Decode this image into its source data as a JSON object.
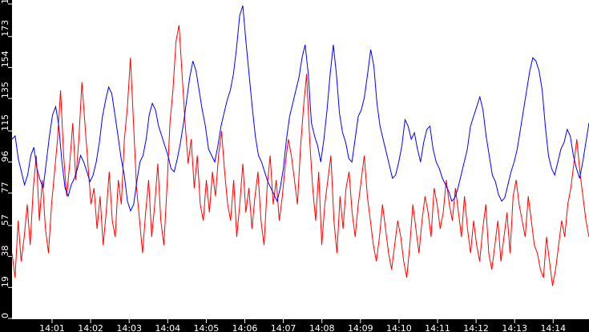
{
  "chart_data": {
    "type": "line",
    "title": "",
    "xlabel": "",
    "ylabel": "",
    "ylim": [
      0,
      193
    ],
    "yticks": [
      0,
      19,
      38,
      57,
      77,
      96,
      115,
      135,
      154,
      173,
      193
    ],
    "xticks": [
      "14:01",
      "14:02",
      "14:03",
      "14:04",
      "14:05",
      "14:06",
      "14:07",
      "14:08",
      "14:09",
      "14:10",
      "14:11",
      "14:12",
      "14:13",
      "14:14"
    ],
    "grid": false,
    "legend": null,
    "background": "#ffffff",
    "margin_color": "#000000",
    "series": [
      {
        "name": "blue",
        "color": "#0000ff",
        "values": [
          110,
          112,
          98,
          90,
          82,
          88,
          100,
          105,
          92,
          85,
          80,
          96,
          112,
          125,
          130,
          118,
          96,
          80,
          75,
          82,
          86,
          92,
          100,
          96,
          90,
          84,
          88,
          96,
          108,
          124,
          134,
          142,
          138,
          125,
          112,
          98,
          88,
          72,
          66,
          70,
          84,
          96,
          100,
          110,
          125,
          132,
          128,
          118,
          112,
          106,
          100,
          92,
          90,
          98,
          108,
          120,
          134,
          148,
          158,
          152,
          140,
          128,
          118,
          104,
          100,
          96,
          106,
          118,
          126,
          134,
          140,
          150,
          166,
          186,
          192,
          170,
          150,
          130,
          112,
          100,
          96,
          90,
          84,
          80,
          76,
          72,
          80,
          92,
          110,
          124,
          132,
          140,
          148,
          160,
          168,
          150,
          120,
          112,
          106,
          96,
          110,
          128,
          150,
          168,
          150,
          126,
          114,
          108,
          98,
          96,
          110,
          124,
          128,
          136,
          150,
          165,
          155,
          132,
          118,
          110,
          102,
          94,
          86,
          88,
          96,
          106,
          122,
          118,
          110,
          114,
          104,
          96,
          108,
          116,
          118,
          104,
          96,
          92,
          86,
          82,
          78,
          72,
          74,
          80,
          88,
          96,
          104,
          118,
          124,
          130,
          136,
          128,
          112,
          100,
          88,
          84,
          76,
          72,
          74,
          82,
          90,
          96,
          104,
          116,
          128,
          140,
          152,
          160,
          158,
          152,
          140,
          118,
          100,
          92,
          88,
          96,
          104,
          108,
          116,
          112,
          100,
          92,
          86,
          96,
          108,
          120
        ],
        "notes": "x spans ~14:00:58 to ~14:15; peak 193 near 14:06; dip ~65 near 14:10:15"
      },
      {
        "name": "red",
        "color": "#ff0000",
        "values": [
          40,
          25,
          60,
          35,
          50,
          70,
          45,
          80,
          100,
          60,
          85,
          55,
          40,
          70,
          90,
          110,
          140,
          100,
          75,
          95,
          120,
          85,
          110,
          145,
          120,
          95,
          70,
          80,
          55,
          75,
          45,
          65,
          90,
          60,
          50,
          85,
          70,
          110,
          130,
          160,
          120,
          80,
          60,
          40,
          65,
          85,
          50,
          70,
          95,
          60,
          45,
          80,
          120,
          140,
          170,
          180,
          150,
          120,
          95,
          110,
          80,
          100,
          70,
          60,
          85,
          65,
          90,
          75,
          100,
          115,
          90,
          70,
          60,
          85,
          50,
          70,
          95,
          65,
          80,
          55,
          75,
          90,
          60,
          45,
          80,
          100,
          70,
          85,
          60,
          75,
          95,
          110,
          100,
          85,
          70,
          105,
          130,
          150,
          110,
          80,
          60,
          90,
          45,
          70,
          85,
          100,
          60,
          40,
          75,
          55,
          80,
          90,
          65,
          50,
          70,
          85,
          100,
          75,
          60,
          45,
          35,
          50,
          70,
          55,
          40,
          30,
          45,
          60,
          50,
          35,
          25,
          45,
          70,
          55,
          40,
          60,
          75,
          65,
          50,
          80,
          70,
          55,
          65,
          85,
          70,
          60,
          80,
          65,
          50,
          75,
          55,
          40,
          60,
          45,
          35,
          55,
          70,
          40,
          30,
          45,
          60,
          35,
          50,
          65,
          40,
          75,
          85,
          70,
          60,
          50,
          75,
          60,
          45,
          40,
          30,
          25,
          50,
          35,
          20,
          30,
          45,
          60,
          50,
          70,
          80,
          95,
          110,
          90,
          75,
          60,
          50
        ]
      }
    ],
    "x_range": [
      "14:00:58",
      "14:14:58"
    ]
  }
}
